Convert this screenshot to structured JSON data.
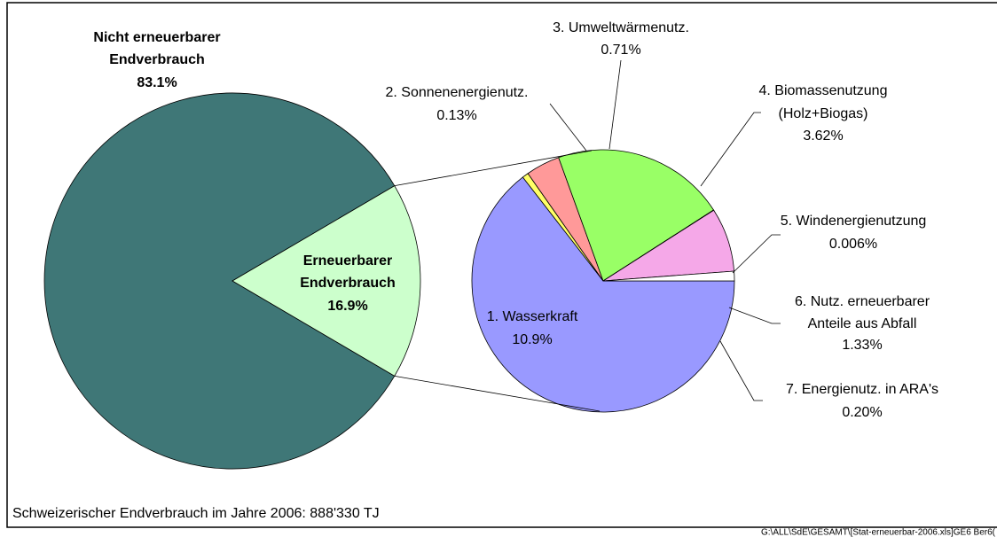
{
  "chart_data": [
    {
      "type": "pie",
      "categories": [
        [
          "Nicht erneuerbarer",
          "Endverbrauch"
        ],
        [
          "Erneuerbarer",
          "Endverbrauch"
        ]
      ],
      "values": [
        83.1,
        16.9
      ],
      "value_labels": [
        "83.1%",
        "16.9%"
      ],
      "colors": [
        "#3f7777",
        "#ccffcc"
      ]
    },
    {
      "type": "pie",
      "categories": [
        [
          "1. Wasserkraft"
        ],
        [
          "2. Sonnenenergienutz."
        ],
        [
          "3. Umweltwärmenutz."
        ],
        [
          "4. Biomassenutzung",
          "(Holz+Biogas)"
        ],
        [
          "5. Windenergienutzung"
        ],
        [
          "6. Nutz. erneuerbarer",
          "Anteile aus Abfall"
        ],
        [
          "7. Energienutz. in ARA's"
        ]
      ],
      "values": [
        10.9,
        0.13,
        0.71,
        3.62,
        0.006,
        1.33,
        0.2
      ],
      "value_labels": [
        "10.9%",
        "0.13%",
        "0.71%",
        "3.62%",
        "0.006%",
        "1.33%",
        "0.20%"
      ],
      "colors": [
        "#9999ff",
        "#ffff66",
        "#ff9999",
        "#99ff66",
        "#333333",
        "#f5a8e8",
        "#ffffff"
      ]
    }
  ],
  "footer": "Schweizerischer Endverbrauch im Jahre 2006:  888'330 TJ",
  "file_path": "G:\\ALL\\SdE\\GESAMT\\[Stat-erneuerbar-2006.xls]GE6   Ber6("
}
